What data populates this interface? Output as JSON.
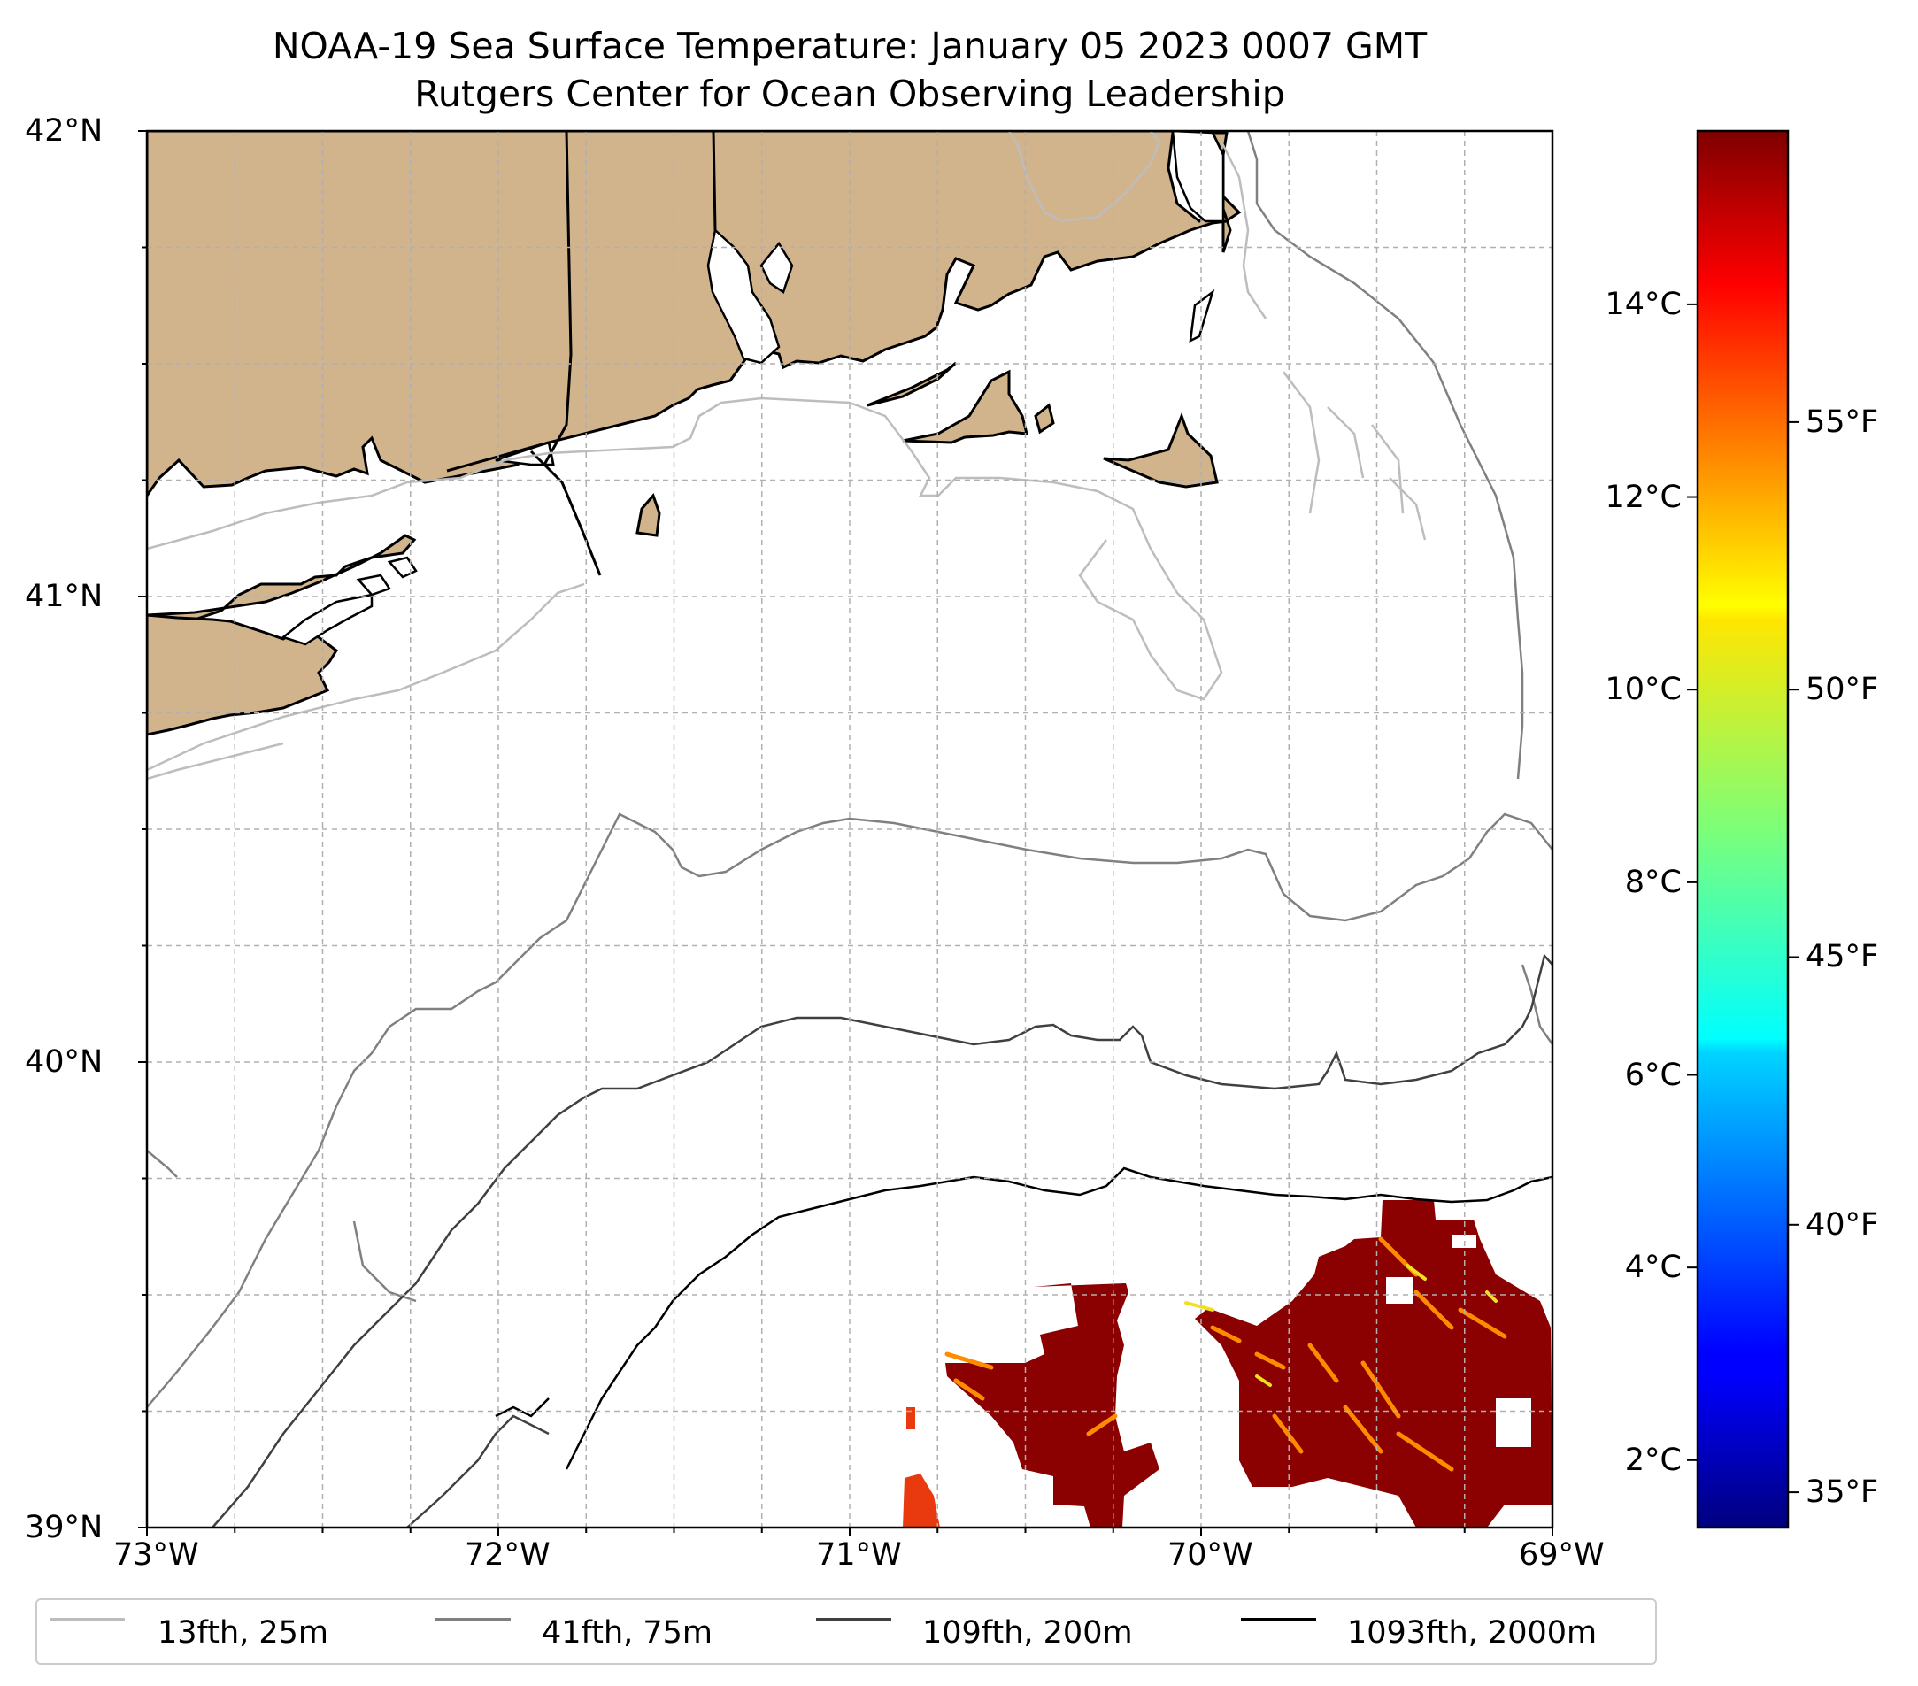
{
  "title": {
    "line1": "NOAA-19 Sea Surface Temperature: January 05 2023 0007 GMT",
    "line2": "Rutgers Center for Ocean Observing Leadership"
  },
  "map": {
    "lon_range": [
      -73,
      -69
    ],
    "lat_range": [
      39,
      42
    ],
    "lon_ticks": [
      "73°W",
      "72°W",
      "71°W",
      "70°W",
      "69°W"
    ],
    "lat_ticks": [
      "39°N",
      "40°N",
      "41°N",
      "42°N"
    ],
    "land_color": "#d2b48c",
    "sst_main_color": "#8b0000"
  },
  "colorbar": {
    "celsius_ticks": [
      {
        "value": 2,
        "label": "2°C"
      },
      {
        "value": 4,
        "label": "4°C"
      },
      {
        "value": 6,
        "label": "6°C"
      },
      {
        "value": 8,
        "label": "8°C"
      },
      {
        "value": 10,
        "label": "10°C"
      },
      {
        "value": 12,
        "label": "12°C"
      },
      {
        "value": 14,
        "label": "14°C"
      }
    ],
    "fahrenheit_ticks": [
      {
        "value": 35,
        "label": "35°F"
      },
      {
        "value": 40,
        "label": "40°F"
      },
      {
        "value": 45,
        "label": "45°F"
      },
      {
        "value": 50,
        "label": "50°F"
      },
      {
        "value": 55,
        "label": "55°F"
      }
    ],
    "range_c": [
      1.3,
      15.8
    ]
  },
  "legend": {
    "items": [
      {
        "label": "13fth, 25m",
        "color": "#bdbdbd"
      },
      {
        "label": "41fth, 75m",
        "color": "#808080"
      },
      {
        "label": "109fth, 200m",
        "color": "#404040"
      },
      {
        "label": "1093fth, 2000m",
        "color": "#000000"
      }
    ]
  }
}
